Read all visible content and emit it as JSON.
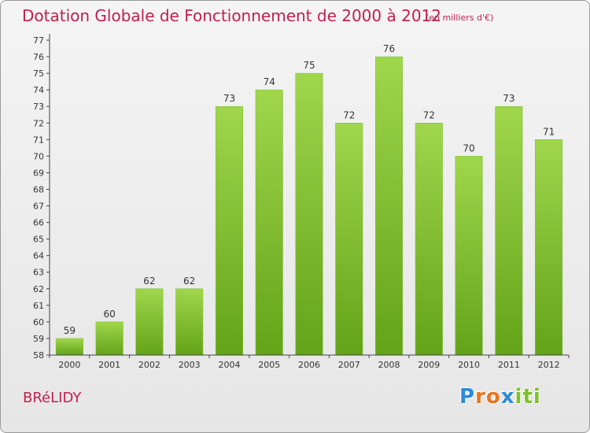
{
  "title": "Dotation Globale de Fonctionnement de 2000 à 2012",
  "unit_note": "(en milliers d'€)",
  "commune": "BRéLIDY",
  "logo": {
    "text": "Proxiti",
    "colors": [
      "#2e8ad8",
      "#e8741e",
      "#e8741e",
      "#2e8ad8",
      "#7cc12a",
      "#7cc12a",
      "#7cc12a"
    ]
  },
  "chart_data": {
    "type": "bar",
    "title": "Dotation Globale de Fonctionnement de 2000 à 2012",
    "xlabel": "",
    "ylabel": "",
    "categories": [
      "2000",
      "2001",
      "2002",
      "2003",
      "2004",
      "2005",
      "2006",
      "2007",
      "2008",
      "2009",
      "2010",
      "2011",
      "2012"
    ],
    "values": [
      59,
      60,
      62,
      62,
      73,
      74,
      75,
      72,
      76,
      72,
      70,
      73,
      71
    ],
    "ylim": [
      58,
      77
    ],
    "yticks": [
      58,
      59,
      60,
      61,
      62,
      63,
      64,
      65,
      66,
      67,
      68,
      69,
      70,
      71,
      72,
      73,
      74,
      75,
      76,
      77
    ],
    "grid": false,
    "bar_color": "#7ebd2e",
    "bar_color_light": "#9fd64c",
    "data_labels": true
  }
}
